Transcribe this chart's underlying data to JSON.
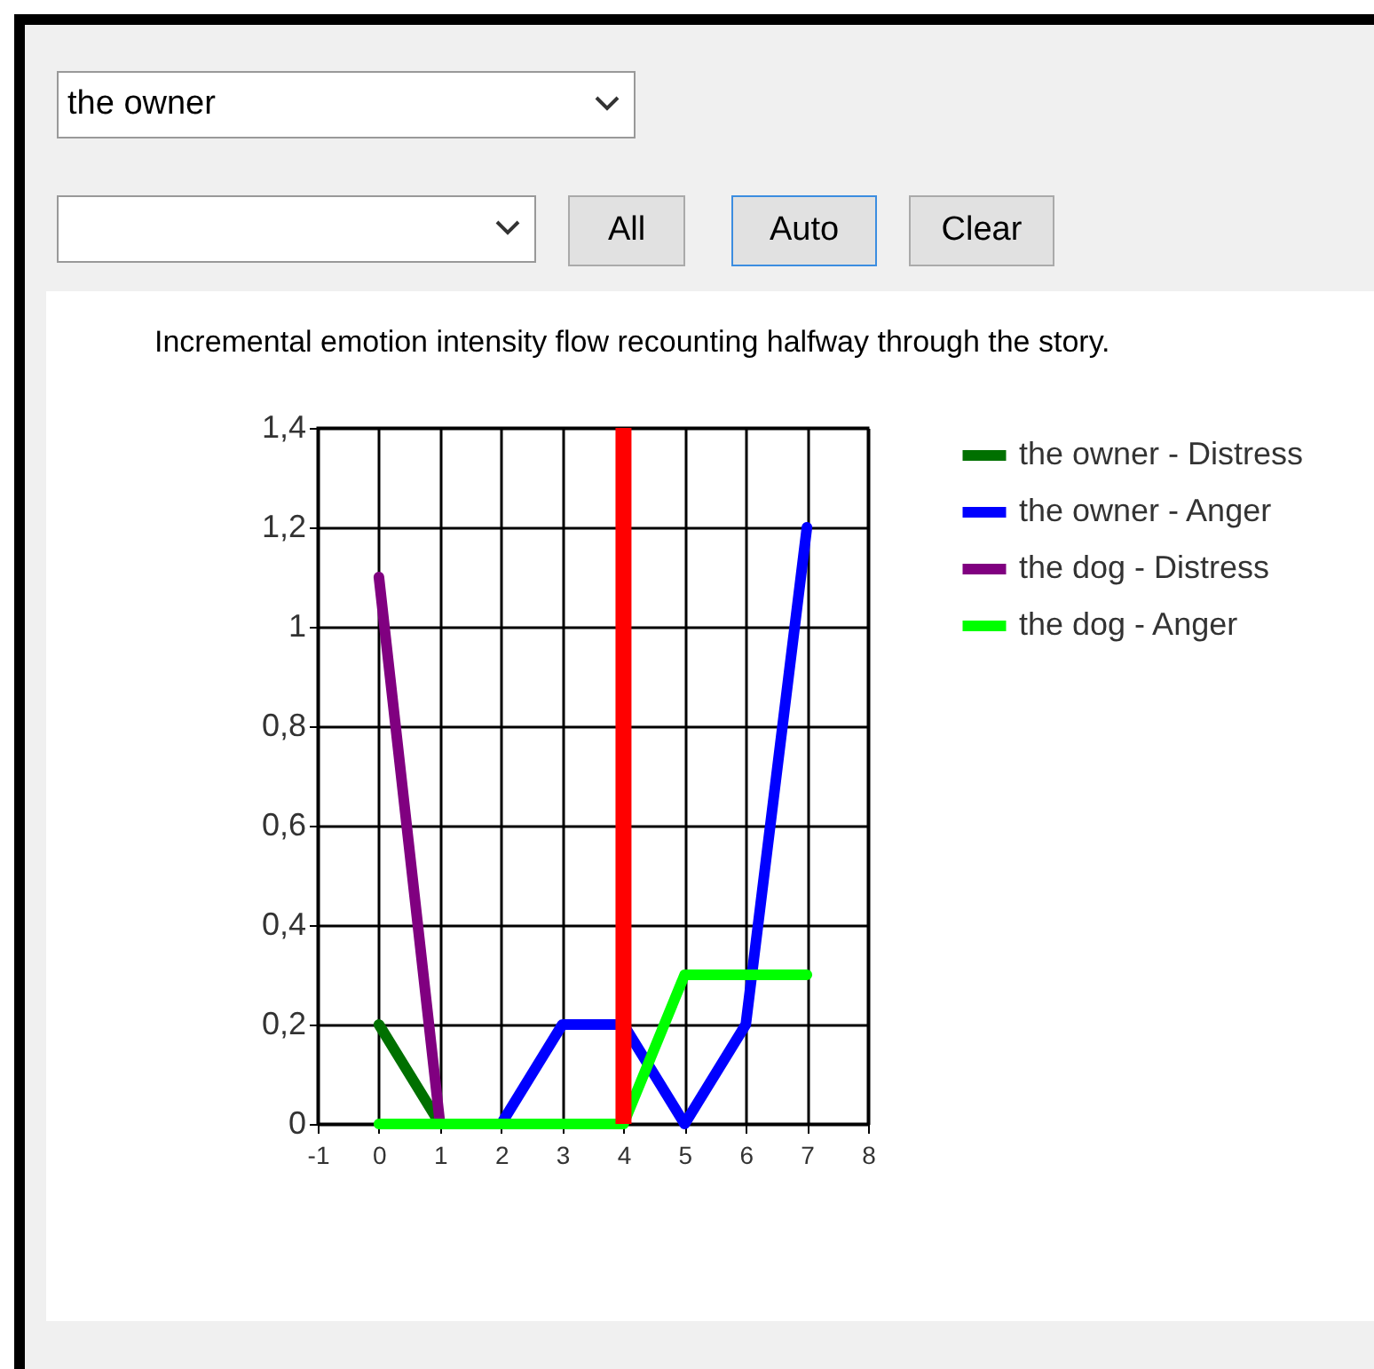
{
  "chart_data": {
    "type": "line",
    "title": "Incremental emotion intensity flow recounting halfway through the story.",
    "annotations": [
      "the owner",
      "All",
      "Auto",
      "Clear"
    ],
    "series": [
      {
        "name": "the owner - Distress",
        "color": "#007000",
        "x": [
          0,
          1
        ],
        "values": [
          0.2,
          0
        ]
      },
      {
        "name": "the owner - Anger",
        "color": "#0000ff",
        "x": [
          2,
          3,
          4,
          5,
          6,
          7
        ],
        "values": [
          0,
          0.2,
          0.2,
          0,
          0.2,
          1.2
        ]
      },
      {
        "name": "the dog - Distress",
        "color": "#800080",
        "x": [
          0,
          1
        ],
        "values": [
          1.1,
          0
        ]
      },
      {
        "name": "the dog - Anger",
        "color": "#00ff00",
        "x": [
          0,
          1,
          2,
          3,
          4,
          5,
          6,
          7
        ],
        "values": [
          0,
          0,
          0,
          0,
          0,
          0.3,
          0.3,
          0.3
        ]
      }
    ],
    "ref_lines": [
      {
        "axis": "x",
        "value": 4,
        "color": "#ff0000"
      }
    ],
    "xlim": [
      -1,
      8
    ],
    "xticks": [
      -1,
      0,
      1,
      2,
      3,
      4,
      5,
      6,
      7,
      8
    ],
    "ylim": [
      0,
      1.4
    ],
    "yticks": [
      0,
      {
        "value": 0.2,
        "label": "0,2"
      },
      {
        "value": 0.4,
        "label": "0,4"
      },
      {
        "value": 0.6,
        "label": "0,6"
      },
      {
        "value": 0.8,
        "label": "0,8"
      },
      1,
      {
        "value": 1.2,
        "label": "1,2"
      },
      {
        "value": 1.4,
        "label": "1,4"
      }
    ],
    "grid": true,
    "legend": "right"
  }
}
